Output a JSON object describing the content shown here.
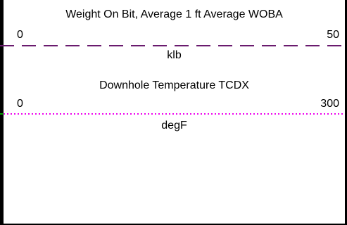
{
  "tracks": [
    {
      "title": "Weight On Bit, Average 1 ft Average WOBA",
      "min": "0",
      "max": "50",
      "unit": "klb",
      "line_style": "dashed",
      "color": "#6a1b6e"
    },
    {
      "title": "Downhole Temperature TCDX",
      "min": "0",
      "max": "300",
      "unit": "degF",
      "line_style": "dotted",
      "color": "#ee00ee"
    }
  ]
}
